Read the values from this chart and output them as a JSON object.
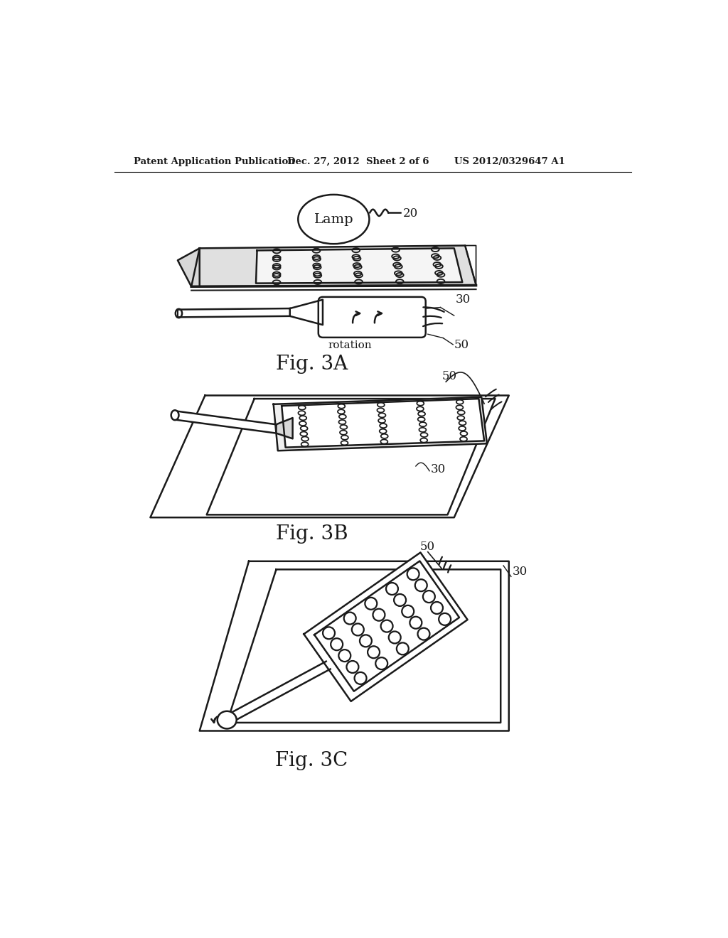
{
  "header_left": "Patent Application Publication",
  "header_mid": "Dec. 27, 2012  Sheet 2 of 6",
  "header_right": "US 2012/0329647 A1",
  "fig3a_label": "Fig. 3A",
  "fig3b_label": "Fig. 3B",
  "fig3c_label": "Fig. 3C",
  "label_lamp": "Lamp",
  "label_20": "20",
  "label_30_a": "30",
  "label_50_a": "50",
  "label_rotation": "rotation",
  "label_30_b": "30",
  "label_50_b": "50",
  "label_30_c": "30",
  "label_50_c": "50",
  "bg_color": "#ffffff",
  "line_color": "#1a1a1a",
  "text_color": "#1a1a1a"
}
